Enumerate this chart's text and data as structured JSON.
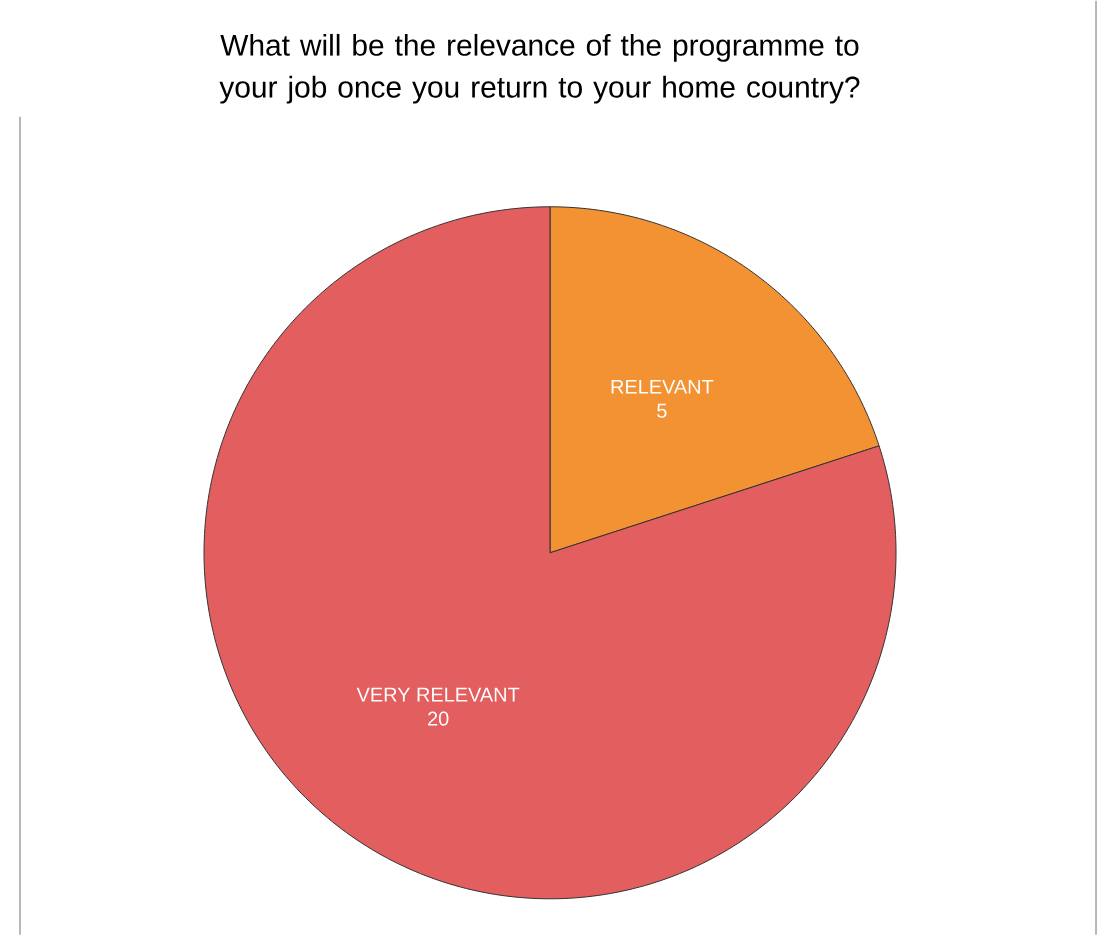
{
  "chart_data": {
    "type": "pie",
    "title": "What will be the relevance of the programme to your job once you return to your home country?",
    "categories": [
      "RELEVANT",
      "VERY RELEVANT"
    ],
    "values": [
      5,
      20
    ],
    "colors": [
      "#f39232",
      "#e35e5f"
    ],
    "data_labels": true
  }
}
